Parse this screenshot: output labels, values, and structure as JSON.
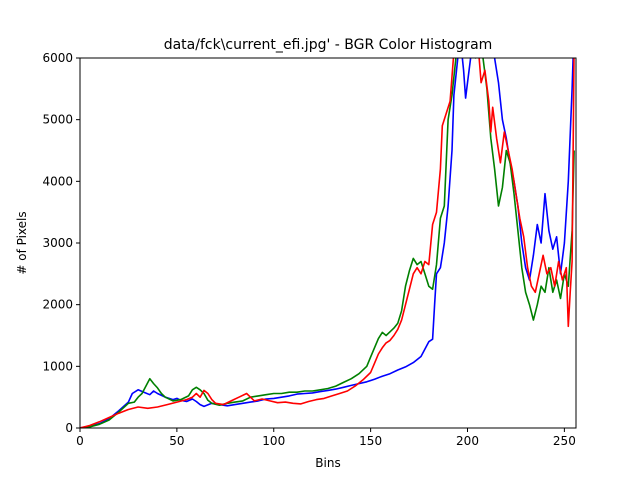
{
  "chart_data": {
    "type": "line",
    "title": "data/fck\\current_efi.jpg' - BGR Color Histogram",
    "xlabel": "Bins",
    "ylabel": "# of Pixels",
    "xlim": [
      0,
      256
    ],
    "ylim": [
      0,
      6000
    ],
    "xticks": [
      0,
      50,
      100,
      150,
      200,
      250
    ],
    "yticks": [
      0,
      1000,
      2000,
      3000,
      4000,
      5000,
      6000
    ],
    "grid": false,
    "legend": "none",
    "series": [
      {
        "color": "#0000ff",
        "points": [
          [
            0,
            0
          ],
          [
            5,
            30
          ],
          [
            10,
            70
          ],
          [
            15,
            150
          ],
          [
            20,
            280
          ],
          [
            25,
            420
          ],
          [
            27,
            560
          ],
          [
            30,
            620
          ],
          [
            33,
            580
          ],
          [
            36,
            540
          ],
          [
            38,
            600
          ],
          [
            40,
            560
          ],
          [
            44,
            500
          ],
          [
            48,
            460
          ],
          [
            50,
            480
          ],
          [
            52,
            450
          ],
          [
            55,
            430
          ],
          [
            58,
            470
          ],
          [
            60,
            430
          ],
          [
            62,
            380
          ],
          [
            64,
            350
          ],
          [
            68,
            400
          ],
          [
            72,
            380
          ],
          [
            76,
            360
          ],
          [
            80,
            380
          ],
          [
            84,
            400
          ],
          [
            88,
            420
          ],
          [
            92,
            440
          ],
          [
            96,
            470
          ],
          [
            100,
            480
          ],
          [
            104,
            500
          ],
          [
            108,
            520
          ],
          [
            112,
            550
          ],
          [
            116,
            560
          ],
          [
            120,
            570
          ],
          [
            124,
            590
          ],
          [
            128,
            610
          ],
          [
            132,
            630
          ],
          [
            136,
            660
          ],
          [
            140,
            690
          ],
          [
            144,
            720
          ],
          [
            148,
            750
          ],
          [
            152,
            790
          ],
          [
            156,
            840
          ],
          [
            160,
            880
          ],
          [
            164,
            940
          ],
          [
            168,
            990
          ],
          [
            172,
            1060
          ],
          [
            176,
            1160
          ],
          [
            178,
            1280
          ],
          [
            180,
            1400
          ],
          [
            182,
            1440
          ],
          [
            183,
            2000
          ],
          [
            184,
            2500
          ],
          [
            186,
            2600
          ],
          [
            188,
            3000
          ],
          [
            190,
            3600
          ],
          [
            192,
            4500
          ],
          [
            193,
            5400
          ],
          [
            195,
            6000
          ],
          [
            197,
            6100
          ],
          [
            198,
            5800
          ],
          [
            199,
            5350
          ],
          [
            200,
            5600
          ],
          [
            202,
            6100
          ],
          [
            204,
            6500
          ],
          [
            206,
            6800
          ],
          [
            208,
            6500
          ],
          [
            210,
            6600
          ],
          [
            212,
            6200
          ],
          [
            214,
            6000
          ],
          [
            216,
            5600
          ],
          [
            218,
            5000
          ],
          [
            220,
            4700
          ],
          [
            222,
            4300
          ],
          [
            224,
            4000
          ],
          [
            226,
            3600
          ],
          [
            228,
            3000
          ],
          [
            230,
            2600
          ],
          [
            232,
            2400
          ],
          [
            234,
            2800
          ],
          [
            236,
            3300
          ],
          [
            238,
            3000
          ],
          [
            240,
            3800
          ],
          [
            242,
            3200
          ],
          [
            244,
            2900
          ],
          [
            246,
            3100
          ],
          [
            248,
            2500
          ],
          [
            250,
            3000
          ],
          [
            252,
            4000
          ],
          [
            254,
            5500
          ],
          [
            255,
            6500
          ]
        ]
      },
      {
        "color": "#008000",
        "points": [
          [
            0,
            0
          ],
          [
            5,
            20
          ],
          [
            10,
            60
          ],
          [
            15,
            130
          ],
          [
            20,
            260
          ],
          [
            25,
            400
          ],
          [
            28,
            420
          ],
          [
            30,
            500
          ],
          [
            32,
            560
          ],
          [
            34,
            680
          ],
          [
            36,
            800
          ],
          [
            38,
            720
          ],
          [
            40,
            650
          ],
          [
            42,
            560
          ],
          [
            44,
            500
          ],
          [
            48,
            440
          ],
          [
            52,
            460
          ],
          [
            56,
            520
          ],
          [
            58,
            620
          ],
          [
            60,
            660
          ],
          [
            62,
            620
          ],
          [
            64,
            560
          ],
          [
            66,
            450
          ],
          [
            68,
            400
          ],
          [
            72,
            370
          ],
          [
            76,
            400
          ],
          [
            80,
            420
          ],
          [
            84,
            440
          ],
          [
            88,
            500
          ],
          [
            92,
            520
          ],
          [
            96,
            540
          ],
          [
            100,
            560
          ],
          [
            104,
            560
          ],
          [
            108,
            580
          ],
          [
            112,
            580
          ],
          [
            116,
            600
          ],
          [
            120,
            600
          ],
          [
            124,
            620
          ],
          [
            128,
            640
          ],
          [
            132,
            680
          ],
          [
            136,
            740
          ],
          [
            140,
            800
          ],
          [
            144,
            880
          ],
          [
            148,
            1000
          ],
          [
            150,
            1150
          ],
          [
            152,
            1300
          ],
          [
            154,
            1450
          ],
          [
            156,
            1550
          ],
          [
            158,
            1500
          ],
          [
            160,
            1560
          ],
          [
            162,
            1620
          ],
          [
            164,
            1700
          ],
          [
            166,
            1900
          ],
          [
            168,
            2300
          ],
          [
            170,
            2550
          ],
          [
            172,
            2750
          ],
          [
            174,
            2650
          ],
          [
            176,
            2700
          ],
          [
            178,
            2500
          ],
          [
            180,
            2300
          ],
          [
            182,
            2250
          ],
          [
            184,
            2650
          ],
          [
            186,
            3400
          ],
          [
            188,
            3600
          ],
          [
            190,
            5000
          ],
          [
            192,
            5400
          ],
          [
            194,
            6000
          ],
          [
            196,
            6300
          ],
          [
            198,
            6500
          ],
          [
            200,
            6400
          ],
          [
            202,
            6100
          ],
          [
            204,
            6000
          ],
          [
            206,
            6300
          ],
          [
            208,
            6000
          ],
          [
            210,
            5500
          ],
          [
            212,
            4700
          ],
          [
            214,
            4200
          ],
          [
            216,
            3600
          ],
          [
            218,
            3900
          ],
          [
            220,
            4500
          ],
          [
            222,
            4300
          ],
          [
            224,
            3800
          ],
          [
            226,
            3200
          ],
          [
            228,
            2600
          ],
          [
            230,
            2200
          ],
          [
            232,
            2000
          ],
          [
            234,
            1750
          ],
          [
            236,
            2000
          ],
          [
            238,
            2300
          ],
          [
            240,
            2200
          ],
          [
            242,
            2600
          ],
          [
            244,
            2200
          ],
          [
            246,
            2400
          ],
          [
            248,
            2100
          ],
          [
            250,
            2500
          ],
          [
            252,
            2300
          ],
          [
            254,
            3200
          ],
          [
            255,
            4500
          ]
        ]
      },
      {
        "color": "#ff0000",
        "points": [
          [
            0,
            0
          ],
          [
            5,
            40
          ],
          [
            10,
            100
          ],
          [
            15,
            170
          ],
          [
            20,
            240
          ],
          [
            25,
            300
          ],
          [
            30,
            340
          ],
          [
            35,
            320
          ],
          [
            40,
            340
          ],
          [
            45,
            380
          ],
          [
            50,
            420
          ],
          [
            55,
            460
          ],
          [
            58,
            500
          ],
          [
            60,
            560
          ],
          [
            62,
            500
          ],
          [
            64,
            610
          ],
          [
            66,
            560
          ],
          [
            68,
            460
          ],
          [
            70,
            400
          ],
          [
            74,
            380
          ],
          [
            78,
            440
          ],
          [
            82,
            500
          ],
          [
            86,
            560
          ],
          [
            88,
            500
          ],
          [
            90,
            440
          ],
          [
            94,
            470
          ],
          [
            98,
            440
          ],
          [
            102,
            410
          ],
          [
            106,
            420
          ],
          [
            110,
            400
          ],
          [
            114,
            390
          ],
          [
            118,
            430
          ],
          [
            122,
            460
          ],
          [
            126,
            480
          ],
          [
            130,
            520
          ],
          [
            134,
            560
          ],
          [
            138,
            600
          ],
          [
            142,
            680
          ],
          [
            146,
            780
          ],
          [
            150,
            900
          ],
          [
            152,
            1050
          ],
          [
            154,
            1200
          ],
          [
            156,
            1300
          ],
          [
            158,
            1380
          ],
          [
            160,
            1420
          ],
          [
            162,
            1500
          ],
          [
            164,
            1600
          ],
          [
            166,
            1750
          ],
          [
            168,
            2000
          ],
          [
            170,
            2250
          ],
          [
            172,
            2500
          ],
          [
            174,
            2600
          ],
          [
            176,
            2500
          ],
          [
            178,
            2700
          ],
          [
            180,
            2650
          ],
          [
            182,
            3300
          ],
          [
            184,
            3500
          ],
          [
            186,
            4200
          ],
          [
            187,
            4900
          ],
          [
            189,
            5100
          ],
          [
            191,
            5300
          ],
          [
            193,
            6100
          ],
          [
            195,
            6500
          ],
          [
            197,
            6800
          ],
          [
            199,
            6600
          ],
          [
            201,
            6400
          ],
          [
            203,
            6200
          ],
          [
            205,
            6400
          ],
          [
            207,
            5600
          ],
          [
            209,
            5800
          ],
          [
            211,
            5300
          ],
          [
            212,
            4800
          ],
          [
            213,
            5200
          ],
          [
            215,
            4700
          ],
          [
            217,
            4300
          ],
          [
            219,
            4800
          ],
          [
            221,
            4500
          ],
          [
            223,
            4200
          ],
          [
            225,
            3800
          ],
          [
            227,
            3400
          ],
          [
            229,
            3100
          ],
          [
            231,
            2600
          ],
          [
            233,
            2300
          ],
          [
            235,
            2200
          ],
          [
            237,
            2500
          ],
          [
            239,
            2800
          ],
          [
            241,
            2500
          ],
          [
            243,
            2600
          ],
          [
            245,
            2300
          ],
          [
            247,
            2700
          ],
          [
            249,
            2400
          ],
          [
            251,
            2600
          ],
          [
            252,
            1650
          ],
          [
            253,
            2200
          ],
          [
            254,
            2700
          ],
          [
            255,
            6200
          ]
        ]
      }
    ]
  }
}
